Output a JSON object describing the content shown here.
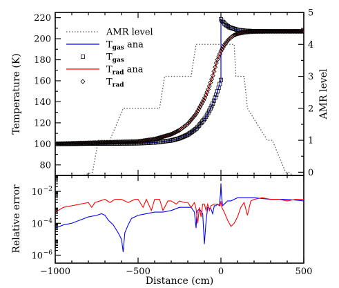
{
  "chart_data": [
    {
      "type": "line",
      "xlim": [
        -1000,
        500
      ],
      "ylim": [
        70,
        225
      ],
      "y2lim": [
        -0.1,
        5.0
      ],
      "ylabel": "Temperature (K)",
      "y2label": "AMR level",
      "y_ticks": [
        "80",
        "100",
        "120",
        "140",
        "160",
        "180",
        "200",
        "220"
      ],
      "y2_ticks": [
        "0",
        "1",
        "2",
        "3",
        "4",
        "5"
      ],
      "legend": {
        "placement": "upper-left",
        "entries": [
          {
            "text": "AMR level",
            "sub": "",
            "text2": "",
            "style": "dotted",
            "color": "#555555"
          },
          {
            "text": "T",
            "sub": "gas",
            "text2": " ana",
            "style": "line",
            "color": "#0000ff"
          },
          {
            "text": "T",
            "sub": "gas",
            "text2": "",
            "style": "square",
            "color": "#000000"
          },
          {
            "text": "T",
            "sub": "rad",
            "text2": " ana",
            "style": "line",
            "color": "#ff0000"
          },
          {
            "text": "T",
            "sub": "rad",
            "text2": "",
            "style": "diamond",
            "color": "#000000"
          }
        ]
      },
      "series": [
        {
          "name": "AMR level",
          "axis": "right",
          "style": "dotted",
          "color": "#555555",
          "x": [
            -1000,
            -775,
            -740,
            -670,
            -590,
            -500,
            -370,
            -340,
            -290,
            -180,
            -150,
            -140,
            -80,
            0,
            80,
            90,
            140,
            160,
            280,
            310,
            390,
            410,
            500
          ],
          "y": [
            -0.4,
            0,
            1,
            1,
            2,
            2,
            2,
            3,
            3,
            3,
            4,
            4,
            4,
            4,
            4,
            3,
            3,
            2,
            1,
            1,
            0,
            0,
            -0.4
          ]
        },
        {
          "name": "Tgas ana",
          "axis": "left",
          "style": "line",
          "color": "#0000ff",
          "x": [
            -1000,
            -500,
            -400,
            -300,
            -250,
            -200,
            -150,
            -100,
            -75,
            -50,
            -25,
            -10,
            0,
            0,
            10,
            25,
            50,
            100,
            150,
            200,
            300,
            500
          ],
          "y": [
            100,
            100.5,
            101.3,
            103.2,
            105.3,
            108.7,
            114.3,
            123.5,
            129.9,
            137.9,
            148.0,
            155.3,
            160.8,
            218.5,
            216.5,
            213.7,
            210.9,
            208.4,
            207.5,
            207.2,
            207.0,
            207.0
          ]
        },
        {
          "name": "Tgas",
          "axis": "left",
          "style": "square",
          "color": "#000000",
          "x": [
            -1000,
            -500,
            -400,
            -300,
            -250,
            -200,
            -150,
            -100,
            -75,
            -50,
            -25,
            -10,
            0,
            0,
            10,
            25,
            50,
            100,
            150,
            200,
            300,
            500
          ],
          "y": [
            100,
            100.5,
            101.3,
            103.2,
            105.3,
            108.7,
            114.3,
            123.5,
            129.9,
            137.9,
            148.0,
            155.3,
            160.8,
            218.5,
            216.5,
            213.7,
            210.9,
            208.4,
            207.5,
            207.2,
            207.0,
            207.0
          ]
        },
        {
          "name": "Trad ana",
          "axis": "left",
          "style": "line",
          "color": "#ff0000",
          "x": [
            -1000,
            -500,
            -400,
            -300,
            -250,
            -200,
            -150,
            -100,
            -75,
            -50,
            -25,
            0,
            25,
            50,
            75,
            100,
            150,
            200,
            300,
            500
          ],
          "y": [
            100,
            102.3,
            104.5,
            109.1,
            113.0,
            119.0,
            128.5,
            143.0,
            152.6,
            164.4,
            178.6,
            188.2,
            195.1,
            199.9,
            203.0,
            204.8,
            206.3,
            206.8,
            207.0,
            207.0
          ]
        },
        {
          "name": "Trad",
          "axis": "left",
          "style": "diamond",
          "color": "#000000",
          "x": [
            -1000,
            -500,
            -400,
            -300,
            -250,
            -200,
            -150,
            -100,
            -75,
            -50,
            -25,
            0,
            25,
            50,
            75,
            100,
            150,
            200,
            300,
            500
          ],
          "y": [
            100,
            102.3,
            104.5,
            109.1,
            113.0,
            119.0,
            128.5,
            143.0,
            152.6,
            164.4,
            178.6,
            188.2,
            195.1,
            199.9,
            203.0,
            204.8,
            206.3,
            206.8,
            207.0,
            207.0
          ]
        }
      ]
    },
    {
      "type": "line",
      "xlim": [
        -1000,
        500
      ],
      "ylim_log10": [
        -6.5,
        -1.0
      ],
      "xlabel": "Distance (cm)",
      "ylabel": "Relative error",
      "x_ticks": [
        "−1000",
        "−500",
        "0",
        "500"
      ],
      "y_ticks": [
        {
          "mantissa": "10",
          "exp": "−6"
        },
        {
          "mantissa": "10",
          "exp": "−4"
        },
        {
          "mantissa": "10",
          "exp": "−2"
        }
      ],
      "series": [
        {
          "name": "Tgas",
          "color": "#0000ff",
          "x": [
            -1000,
            -950,
            -900,
            -850,
            -800,
            -750,
            -720,
            -700,
            -680,
            -650,
            -620,
            -600,
            -590,
            -580,
            -560,
            -540,
            -500,
            -450,
            -400,
            -350,
            -300,
            -250,
            -200,
            -180,
            -160,
            -150,
            -145,
            -140,
            -130,
            -110,
            -100,
            -90,
            -80,
            -60,
            -50,
            -40,
            -30,
            -20,
            -10,
            -3,
            0,
            3,
            10,
            20,
            40,
            60,
            100,
            150,
            200,
            300,
            400,
            500
          ],
          "log10": [
            -4.3,
            -4.1,
            -4.0,
            -3.8,
            -3.6,
            -3.5,
            -3.4,
            -3.5,
            -3.8,
            -4.1,
            -4.6,
            -5.0,
            -5.8,
            -4.6,
            -4.1,
            -3.7,
            -3.5,
            -3.4,
            -3.3,
            -3.3,
            -3.2,
            -3.0,
            -3.0,
            -3.0,
            -3.3,
            -4.3,
            -3.4,
            -3.2,
            -3.1,
            -3.4,
            -5.3,
            -3.9,
            -3.0,
            -3.1,
            -3.4,
            -2.9,
            -2.9,
            -2.8,
            -2.9,
            -2.2,
            -1.5,
            -2.2,
            -2.9,
            -2.8,
            -2.6,
            -2.6,
            -2.4,
            -2.4,
            -2.4,
            -2.5,
            -2.5,
            -2.6
          ]
        },
        {
          "name": "Trad",
          "color": "#ff0000",
          "x": [
            -1000,
            -950,
            -900,
            -850,
            -800,
            -780,
            -760,
            -730,
            -700,
            -670,
            -640,
            -600,
            -560,
            -520,
            -500,
            -470,
            -450,
            -420,
            -400,
            -370,
            -350,
            -320,
            -300,
            -270,
            -250,
            -220,
            -200,
            -180,
            -160,
            -150,
            -140,
            -130,
            -120,
            -110,
            -100,
            -90,
            -80,
            -70,
            -60,
            -40,
            -20,
            -5,
            0,
            5,
            20,
            40,
            60,
            80,
            100,
            120,
            140,
            160,
            180,
            200,
            250,
            300,
            350,
            400,
            450,
            500
          ],
          "log10": [
            -3.3,
            -3.0,
            -2.9,
            -2.8,
            -2.7,
            -3.0,
            -2.7,
            -2.6,
            -2.5,
            -2.7,
            -2.5,
            -2.5,
            -2.7,
            -2.5,
            -2.5,
            -3.0,
            -2.5,
            -3.2,
            -2.5,
            -2.5,
            -3.2,
            -2.6,
            -2.6,
            -2.8,
            -2.6,
            -2.7,
            -2.7,
            -3.0,
            -2.7,
            -3.1,
            -4.0,
            -3.0,
            -3.6,
            -2.8,
            -2.8,
            -3.2,
            -2.8,
            -3.2,
            -2.9,
            -2.8,
            -2.8,
            -2.9,
            -2.6,
            -3.0,
            -3.3,
            -3.8,
            -4.2,
            -4.0,
            -3.6,
            -3.0,
            -2.7,
            -3.5,
            -2.6,
            -2.5,
            -2.4,
            -2.5,
            -2.5,
            -2.6,
            -2.5,
            -2.5
          ]
        }
      ]
    }
  ]
}
